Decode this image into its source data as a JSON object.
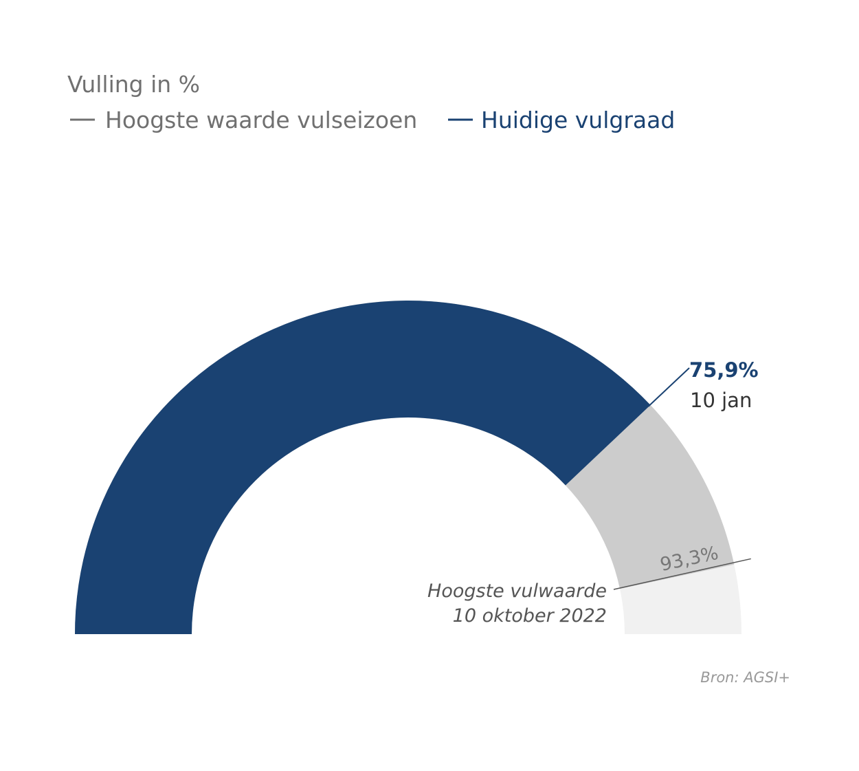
{
  "chart_data": {
    "type": "gauge",
    "title": "Vulling in %",
    "ylim": [
      0,
      100
    ],
    "series": [
      {
        "name": "Hoogste waarde vulseizoen",
        "color": "#cccccc",
        "values": [
          93.3
        ],
        "value_labels": [
          "93,3%"
        ]
      },
      {
        "name": "Huidige vulgraad",
        "color": "#1a4272",
        "values": [
          75.9
        ],
        "value_labels": [
          "75,9%"
        ]
      }
    ],
    "annotations": [
      "10 jan",
      "Hoogste vulwaarde",
      "10 oktober 2022"
    ],
    "source": "Bron: AGSI+"
  }
}
